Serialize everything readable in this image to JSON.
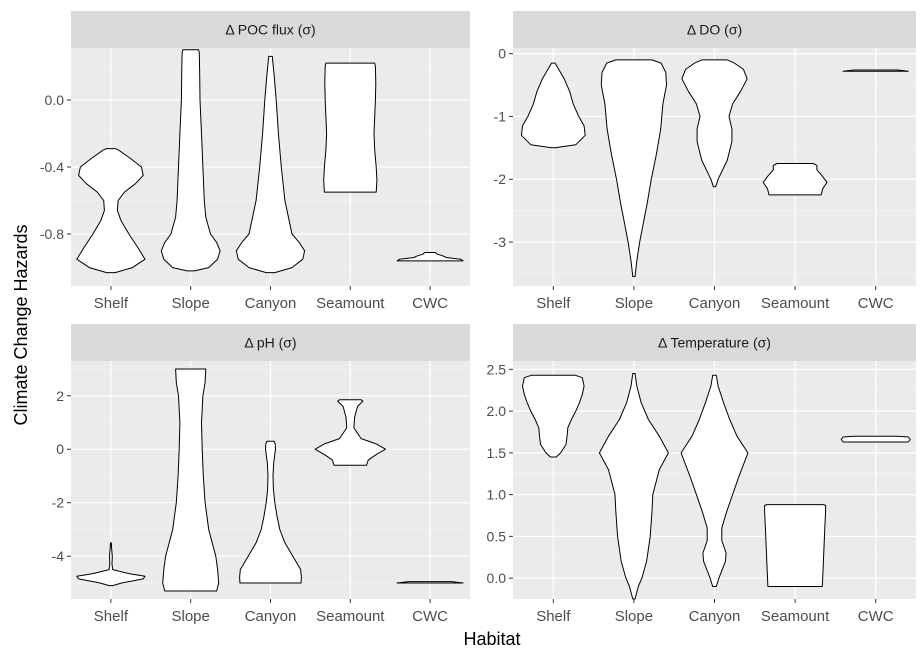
{
  "y_axis_title": "Climate Change Hazards",
  "x_axis_title": "Habitat",
  "categories": [
    "Shelf",
    "Slope",
    "Canyon",
    "Seamount",
    "CWC"
  ],
  "colors": {
    "panel_background": "#ebebeb",
    "strip_background": "#d9d9d9",
    "grid_major": "#ffffff",
    "violin_fill": "#ffffff",
    "violin_stroke": "#000000",
    "text": "#4d4d4d"
  },
  "chart_data": [
    {
      "type": "violin",
      "title": "Δ POC flux (σ)",
      "categories": [
        "Shelf",
        "Slope",
        "Canyon",
        "Seamount",
        "CWC"
      ],
      "ylim": [
        -1.11,
        0.31
      ],
      "yticks": [
        0.0,
        -0.4,
        -0.8
      ],
      "ytick_labels": [
        "0.0",
        "-0.4",
        "-0.8"
      ],
      "grid": true,
      "violins": [
        {
          "profile": [
            [
              -1.03,
              0.12
            ],
            [
              -1.0,
              0.6
            ],
            [
              -0.95,
              0.95
            ],
            [
              -0.88,
              0.75
            ],
            [
              -0.8,
              0.5
            ],
            [
              -0.72,
              0.28
            ],
            [
              -0.66,
              0.18
            ],
            [
              -0.6,
              0.2
            ],
            [
              -0.55,
              0.38
            ],
            [
              -0.5,
              0.68
            ],
            [
              -0.45,
              0.9
            ],
            [
              -0.4,
              0.85
            ],
            [
              -0.35,
              0.55
            ],
            [
              -0.3,
              0.22
            ],
            [
              -0.29,
              0.12
            ]
          ]
        },
        {
          "profile": [
            [
              -1.02,
              0.1
            ],
            [
              -1.0,
              0.5
            ],
            [
              -0.95,
              0.75
            ],
            [
              -0.9,
              0.82
            ],
            [
              -0.85,
              0.72
            ],
            [
              -0.8,
              0.55
            ],
            [
              -0.7,
              0.42
            ],
            [
              -0.6,
              0.38
            ],
            [
              -0.4,
              0.34
            ],
            [
              -0.2,
              0.3
            ],
            [
              0.0,
              0.26
            ],
            [
              0.15,
              0.25
            ],
            [
              0.28,
              0.24
            ],
            [
              0.3,
              0.22
            ]
          ]
        },
        {
          "profile": [
            [
              -1.03,
              0.12
            ],
            [
              -1.0,
              0.6
            ],
            [
              -0.95,
              0.9
            ],
            [
              -0.9,
              0.95
            ],
            [
              -0.85,
              0.8
            ],
            [
              -0.8,
              0.6
            ],
            [
              -0.6,
              0.4
            ],
            [
              -0.4,
              0.3
            ],
            [
              -0.2,
              0.22
            ],
            [
              0.0,
              0.16
            ],
            [
              0.15,
              0.1
            ],
            [
              0.26,
              0.05
            ]
          ]
        },
        {
          "profile": [
            [
              -0.55,
              0.72
            ],
            [
              -0.48,
              0.74
            ],
            [
              -0.4,
              0.72
            ],
            [
              -0.3,
              0.68
            ],
            [
              -0.2,
              0.66
            ],
            [
              -0.1,
              0.68
            ],
            [
              0.0,
              0.7
            ],
            [
              0.1,
              0.71
            ],
            [
              0.2,
              0.7
            ],
            [
              0.22,
              0.68
            ]
          ]
        },
        {
          "profile": [
            [
              -0.96,
              0.92
            ],
            [
              -0.95,
              0.85
            ],
            [
              -0.94,
              0.45
            ],
            [
              -0.93,
              0.35
            ],
            [
              -0.92,
              0.2
            ],
            [
              -0.91,
              0.15
            ]
          ]
        }
      ]
    },
    {
      "type": "violin",
      "title": "Δ DO (σ)",
      "categories": [
        "Shelf",
        "Slope",
        "Canyon",
        "Seamount",
        "CWC"
      ],
      "ylim": [
        -3.7,
        0.09
      ],
      "yticks": [
        0,
        -1,
        -2,
        -3
      ],
      "ytick_labels": [
        "0",
        "-1",
        "-2",
        "-3"
      ],
      "grid": true,
      "violins": [
        {
          "profile": [
            [
              -1.5,
              0.05
            ],
            [
              -1.45,
              0.62
            ],
            [
              -1.3,
              0.88
            ],
            [
              -1.15,
              0.85
            ],
            [
              -1.0,
              0.7
            ],
            [
              -0.8,
              0.55
            ],
            [
              -0.6,
              0.45
            ],
            [
              -0.4,
              0.3
            ],
            [
              -0.25,
              0.15
            ],
            [
              -0.15,
              0.05
            ]
          ]
        },
        {
          "profile": [
            [
              -3.55,
              0.03
            ],
            [
              -3.3,
              0.08
            ],
            [
              -3.0,
              0.16
            ],
            [
              -2.7,
              0.26
            ],
            [
              -2.4,
              0.36
            ],
            [
              -2.0,
              0.48
            ],
            [
              -1.6,
              0.62
            ],
            [
              -1.2,
              0.74
            ],
            [
              -0.8,
              0.8
            ],
            [
              -0.5,
              0.9
            ],
            [
              -0.3,
              0.88
            ],
            [
              -0.15,
              0.75
            ],
            [
              -0.1,
              0.5
            ]
          ]
        },
        {
          "profile": [
            [
              -2.12,
              0.03
            ],
            [
              -2.0,
              0.1
            ],
            [
              -1.7,
              0.35
            ],
            [
              -1.4,
              0.48
            ],
            [
              -1.2,
              0.48
            ],
            [
              -1.0,
              0.4
            ],
            [
              -0.8,
              0.5
            ],
            [
              -0.6,
              0.72
            ],
            [
              -0.4,
              0.9
            ],
            [
              -0.25,
              0.8
            ],
            [
              -0.15,
              0.55
            ],
            [
              -0.1,
              0.35
            ]
          ]
        },
        {
          "profile": [
            [
              -2.25,
              0.72
            ],
            [
              -2.15,
              0.76
            ],
            [
              -2.05,
              0.88
            ],
            [
              -1.95,
              0.75
            ],
            [
              -1.85,
              0.6
            ],
            [
              -1.78,
              0.6
            ],
            [
              -1.75,
              0.5
            ]
          ]
        },
        {
          "profile": [
            [
              -0.28,
              0.9
            ],
            [
              -0.26,
              0.6
            ]
          ]
        }
      ]
    },
    {
      "type": "violin",
      "title": "Δ pH (σ)",
      "categories": [
        "Shelf",
        "Slope",
        "Canyon",
        "Seamount",
        "CWC"
      ],
      "ylim": [
        -5.6,
        3.3
      ],
      "yticks": [
        2,
        0,
        -2,
        -4
      ],
      "ytick_labels": [
        "2",
        "0",
        "-2",
        "-4"
      ],
      "grid": true,
      "violins": [
        {
          "profile": [
            [
              -5.1,
              0.05
            ],
            [
              -5.0,
              0.3
            ],
            [
              -4.85,
              0.9
            ],
            [
              -4.75,
              0.95
            ],
            [
              -4.65,
              0.5
            ],
            [
              -4.5,
              0.05
            ],
            [
              -4.3,
              0.03
            ],
            [
              -4.0,
              0.04
            ],
            [
              -3.7,
              0.02
            ],
            [
              -3.5,
              0.01
            ]
          ]
        },
        {
          "profile": [
            [
              -5.3,
              0.72
            ],
            [
              -5.0,
              0.78
            ],
            [
              -4.5,
              0.75
            ],
            [
              -4.0,
              0.7
            ],
            [
              -3.0,
              0.5
            ],
            [
              -2.0,
              0.4
            ],
            [
              -1.0,
              0.35
            ],
            [
              0.0,
              0.32
            ],
            [
              1.0,
              0.3
            ],
            [
              2.0,
              0.34
            ],
            [
              2.5,
              0.4
            ],
            [
              3.0,
              0.42
            ]
          ]
        },
        {
          "profile": [
            [
              -5.0,
              0.85
            ],
            [
              -4.8,
              0.86
            ],
            [
              -4.5,
              0.84
            ],
            [
              -4.0,
              0.62
            ],
            [
              -3.5,
              0.4
            ],
            [
              -3.0,
              0.26
            ],
            [
              -2.5,
              0.18
            ],
            [
              -2.0,
              0.12
            ],
            [
              -1.5,
              0.08
            ],
            [
              -1.0,
              0.07
            ],
            [
              -0.5,
              0.09
            ],
            [
              0.0,
              0.14
            ],
            [
              0.2,
              0.13
            ],
            [
              0.3,
              0.1
            ]
          ]
        },
        {
          "profile": [
            [
              -0.6,
              0.45
            ],
            [
              -0.4,
              0.5
            ],
            [
              -0.2,
              0.72
            ],
            [
              0.0,
              0.98
            ],
            [
              0.2,
              0.72
            ],
            [
              0.4,
              0.3
            ],
            [
              0.8,
              0.1
            ],
            [
              1.2,
              0.12
            ],
            [
              1.6,
              0.2
            ],
            [
              1.8,
              0.35
            ],
            [
              1.85,
              0.3
            ]
          ]
        },
        {
          "profile": [
            [
              -5.0,
              0.92
            ],
            [
              -4.95,
              0.6
            ]
          ]
        }
      ]
    },
    {
      "type": "violin",
      "title": "Δ Temperature (σ)",
      "categories": [
        "Shelf",
        "Slope",
        "Canyon",
        "Seamount",
        "CWC"
      ],
      "ylim": [
        -0.25,
        2.6
      ],
      "yticks": [
        2.5,
        2.0,
        1.5,
        1.0,
        0.5,
        0.0
      ],
      "ytick_labels": [
        "2.5",
        "2.0",
        "1.5",
        "1.0",
        "0.5",
        "0.0"
      ],
      "grid": true,
      "violins": [
        {
          "profile": [
            [
              1.45,
              0.08
            ],
            [
              1.5,
              0.2
            ],
            [
              1.6,
              0.35
            ],
            [
              1.7,
              0.38
            ],
            [
              1.8,
              0.4
            ],
            [
              1.9,
              0.5
            ],
            [
              2.0,
              0.62
            ],
            [
              2.1,
              0.72
            ],
            [
              2.2,
              0.8
            ],
            [
              2.3,
              0.85
            ],
            [
              2.4,
              0.8
            ],
            [
              2.43,
              0.6
            ]
          ]
        },
        {
          "profile": [
            [
              -0.25,
              0.03
            ],
            [
              -0.1,
              0.12
            ],
            [
              0.0,
              0.22
            ],
            [
              0.2,
              0.35
            ],
            [
              0.5,
              0.45
            ],
            [
              0.8,
              0.5
            ],
            [
              1.0,
              0.52
            ],
            [
              1.3,
              0.7
            ],
            [
              1.5,
              0.95
            ],
            [
              1.7,
              0.7
            ],
            [
              1.9,
              0.4
            ],
            [
              2.1,
              0.2
            ],
            [
              2.3,
              0.08
            ],
            [
              2.45,
              0.03
            ]
          ]
        },
        {
          "profile": [
            [
              -0.1,
              0.05
            ],
            [
              0.0,
              0.12
            ],
            [
              0.2,
              0.3
            ],
            [
              0.3,
              0.32
            ],
            [
              0.45,
              0.2
            ],
            [
              0.6,
              0.2
            ],
            [
              0.8,
              0.34
            ],
            [
              1.0,
              0.5
            ],
            [
              1.2,
              0.66
            ],
            [
              1.5,
              0.92
            ],
            [
              1.7,
              0.62
            ],
            [
              1.9,
              0.42
            ],
            [
              2.1,
              0.25
            ],
            [
              2.3,
              0.1
            ],
            [
              2.43,
              0.05
            ]
          ]
        },
        {
          "profile": [
            [
              -0.1,
              0.75
            ],
            [
              0.0,
              0.76
            ],
            [
              0.2,
              0.78
            ],
            [
              0.4,
              0.8
            ],
            [
              0.6,
              0.82
            ],
            [
              0.8,
              0.84
            ],
            [
              0.87,
              0.84
            ],
            [
              0.88,
              0.78
            ]
          ]
        },
        {
          "profile": [
            [
              1.63,
              0.9
            ],
            [
              1.66,
              0.95
            ],
            [
              1.69,
              0.9
            ],
            [
              1.7,
              0.6
            ]
          ]
        }
      ]
    }
  ]
}
